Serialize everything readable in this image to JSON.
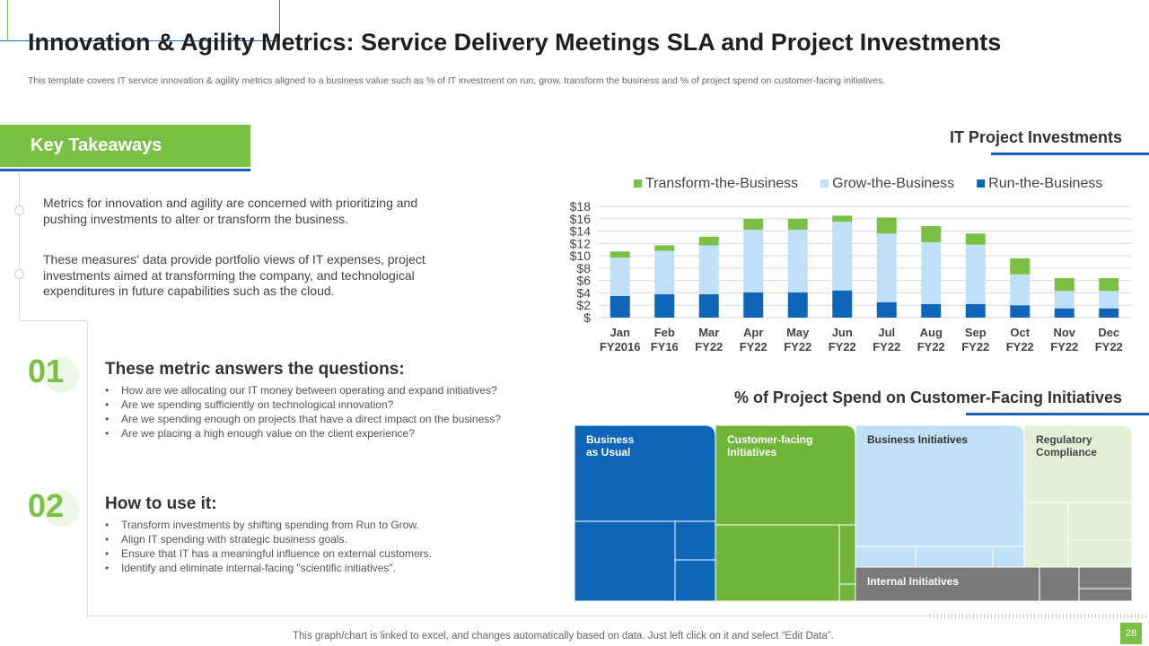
{
  "title": "Innovation  & Agility Metrics: Service Delivery Meetings SLA and Project Investments",
  "subtitle": "This template covers IT service innovation & agility metrics aligned to a business value such as % of IT investment on run, grow, transform the business and % of project spend on customer-facing initiatives.",
  "key_takeaways": {
    "heading": "Key Takeaways",
    "paragraph1": "Metrics for innovation and agility are concerned with prioritizing and pushing investments to alter or transform the business.",
    "paragraph2": "These measures' data provide portfolio views of IT expenses, project investments aimed at transforming the company, and technological expenditures in future capabilities such as the cloud."
  },
  "section1": {
    "number": "01",
    "heading": "These metric answers the questions:",
    "items": [
      "How are we allocating our IT money between operating and expand initiatives?",
      "Are we spending sufficiently on technological innovation?",
      "Are we spending enough  on projects that have  a direct impact on the business?",
      "Are we placing a high enough value on the client experience?"
    ]
  },
  "section2": {
    "number": "02",
    "heading": "How to use it:",
    "items": [
      "Transform  investments  by shifting spending from Run to Grow.",
      "Align IT spending with strategic business goals.",
      "Ensure that IT has a meaningful  influence  on external customers.",
      "Identify and  eliminate  internal-facing  \"scientific initiatives\"."
    ]
  },
  "chart_data": [
    {
      "type": "bar",
      "title": "IT Project Investments",
      "stacked": true,
      "categories": [
        "Jan FY2016",
        "Feb FY16",
        "Mar FY22",
        "Apr FY22",
        "May FY22",
        "Jun FY22",
        "Jul FY22",
        "Aug FY22",
        "Sep FY22",
        "Oct FY22",
        "Nov FY22",
        "Dec FY22"
      ],
      "category_lines": [
        [
          "Jan",
          "FY2016"
        ],
        [
          "Feb",
          "FY16"
        ],
        [
          "Mar",
          "FY22"
        ],
        [
          "Apr",
          "FY22"
        ],
        [
          "May",
          "FY22"
        ],
        [
          "Jun",
          "FY22"
        ],
        [
          "Jul",
          "FY22"
        ],
        [
          "Aug",
          "FY22"
        ],
        [
          "Sep",
          "FY22"
        ],
        [
          "Oct",
          "FY22"
        ],
        [
          "Nov",
          "FY22"
        ],
        [
          "Dec",
          "FY22"
        ]
      ],
      "series": [
        {
          "name": "Run-the-Business",
          "color": "#0f65b7",
          "values": [
            3.5,
            3.8,
            3.8,
            4.1,
            4.1,
            4.4,
            2.5,
            2.2,
            2.2,
            2.0,
            1.5,
            1.5
          ]
        },
        {
          "name": "Grow-the-Business",
          "color": "#bfe0f7",
          "values": [
            6.2,
            7.0,
            7.9,
            10.1,
            10.1,
            11.1,
            11.1,
            10.0,
            9.6,
            5.0,
            2.8,
            2.8
          ]
        },
        {
          "name": "Transform-the-Business",
          "color": "#7ac143",
          "values": [
            1.0,
            0.9,
            1.4,
            1.8,
            1.8,
            1.0,
            2.6,
            2.6,
            1.8,
            2.6,
            2.1,
            2.1
          ]
        }
      ],
      "legend_order": [
        "Transform-the-Business",
        "Grow-the-Business",
        "Run-the-Business"
      ],
      "legend_position": "top",
      "ylim": [
        0,
        18
      ],
      "yticks": [
        "$",
        "$2",
        "$4",
        "$6",
        "$8",
        "$10",
        "$12",
        "$14",
        "$16",
        "$18"
      ],
      "grid": true
    },
    {
      "type": "treemap",
      "title": "% of Project Spend on  Customer-Facing Initiatives",
      "blocks": [
        {
          "name": "Business as Usual",
          "label_lines": [
            "Business",
            "as Usual"
          ],
          "color": "#0f65b7",
          "text_color": "#ffffff"
        },
        {
          "name": "Customer-facing Initiatives",
          "label_lines": [
            "Customer-facing",
            "Initiatives"
          ],
          "color": "#6fb63a",
          "text_color": "#ffffff"
        },
        {
          "name": "Business Initiatives",
          "label_lines": [
            "Business Initiatives"
          ],
          "color": "#bfe0f7",
          "text_color": "#333333"
        },
        {
          "name": "Regulatory Compliance",
          "label_lines": [
            "Regulatory",
            "Compliance"
          ],
          "color": "#e3f0d6",
          "text_color": "#444444"
        },
        {
          "name": "Internal Initiatives",
          "label_lines": [
            "Internal Initiatives"
          ],
          "color": "#7a7a7a",
          "text_color": "#ffffff"
        }
      ]
    }
  ],
  "footer": "This graph/chart is linked to excel,  and changes automatically based on data. Just left click on it and select “Edit Data”.",
  "page_number": "28"
}
